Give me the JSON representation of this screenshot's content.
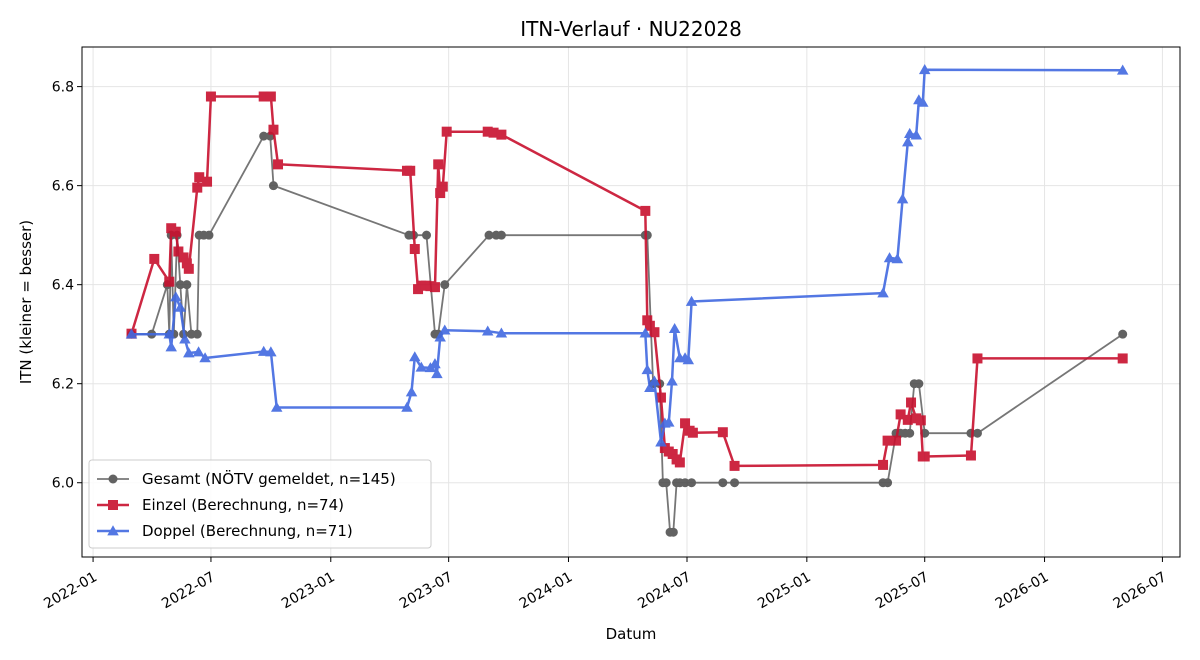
{
  "chart_data": {
    "type": "line",
    "title": "ITN-Verlauf · NU22028",
    "xlabel": "Datum",
    "ylabel": "ITN  (kleiner = besser)",
    "x_type": "date",
    "xlim": [
      "2021-12-15",
      "2026-07-28"
    ],
    "ylim": [
      5.85,
      6.88
    ],
    "x_ticks": [
      "2022-01",
      "2022-07",
      "2023-01",
      "2023-07",
      "2024-01",
      "2024-07",
      "2025-01",
      "2025-07",
      "2026-01",
      "2026-07"
    ],
    "y_ticks": [
      6.0,
      6.2,
      6.4,
      6.6,
      6.8
    ],
    "y_tick_labels": [
      "6.0",
      "6.2",
      "6.4",
      "6.6",
      "6.8"
    ],
    "grid": true,
    "legend_position": "lower-left",
    "series": [
      {
        "name": "Gesamt (NÖTV gemeldet, n=145)",
        "color": "#555555",
        "marker": "circle",
        "points": [
          [
            "2022-03-01",
            6.3
          ],
          [
            "2022-04-01",
            6.3
          ],
          [
            "2022-04-25",
            6.4
          ],
          [
            "2022-04-28",
            6.3
          ],
          [
            "2022-05-01",
            6.5
          ],
          [
            "2022-05-05",
            6.3
          ],
          [
            "2022-05-10",
            6.5
          ],
          [
            "2022-05-15",
            6.4
          ],
          [
            "2022-05-20",
            6.3
          ],
          [
            "2022-05-25",
            6.4
          ],
          [
            "2022-06-01",
            6.3
          ],
          [
            "2022-06-10",
            6.3
          ],
          [
            "2022-06-13",
            6.5
          ],
          [
            "2022-06-20",
            6.5
          ],
          [
            "2022-06-28",
            6.5
          ],
          [
            "2022-09-20",
            6.7
          ],
          [
            "2022-09-30",
            6.7
          ],
          [
            "2022-10-05",
            6.6
          ],
          [
            "2023-05-01",
            6.5
          ],
          [
            "2023-05-08",
            6.5
          ],
          [
            "2023-05-28",
            6.5
          ],
          [
            "2023-06-10",
            6.3
          ],
          [
            "2023-06-15",
            6.3
          ],
          [
            "2023-06-25",
            6.4
          ],
          [
            "2023-09-01",
            6.5
          ],
          [
            "2023-09-12",
            6.5
          ],
          [
            "2023-09-20",
            6.5
          ],
          [
            "2024-04-28",
            6.5
          ],
          [
            "2024-05-01",
            6.5
          ],
          [
            "2024-05-10",
            6.2
          ],
          [
            "2024-05-20",
            6.2
          ],
          [
            "2024-05-25",
            6.0
          ],
          [
            "2024-05-30",
            6.0
          ],
          [
            "2024-06-05",
            5.9
          ],
          [
            "2024-06-10",
            5.9
          ],
          [
            "2024-06-15",
            6.0
          ],
          [
            "2024-06-20",
            6.0
          ],
          [
            "2024-06-28",
            6.0
          ],
          [
            "2024-07-08",
            6.0
          ],
          [
            "2024-08-25",
            6.0
          ],
          [
            "2024-09-12",
            6.0
          ],
          [
            "2025-04-28",
            6.0
          ],
          [
            "2025-05-05",
            6.0
          ],
          [
            "2025-05-18",
            6.1
          ],
          [
            "2025-05-25",
            6.1
          ],
          [
            "2025-06-01",
            6.1
          ],
          [
            "2025-06-08",
            6.1
          ],
          [
            "2025-06-15",
            6.2
          ],
          [
            "2025-06-22",
            6.2
          ],
          [
            "2025-07-01",
            6.1
          ],
          [
            "2025-09-10",
            6.1
          ],
          [
            "2025-09-20",
            6.1
          ],
          [
            "2026-05-01",
            6.3
          ]
        ]
      },
      {
        "name": "Einzel (Berechnung, n=74)",
        "color": "#c8102e",
        "marker": "square",
        "points": [
          [
            "2022-03-01",
            6.301
          ],
          [
            "2022-04-05",
            6.452
          ],
          [
            "2022-04-28",
            6.406
          ],
          [
            "2022-05-01",
            6.514
          ],
          [
            "2022-05-08",
            6.507
          ],
          [
            "2022-05-12",
            6.467
          ],
          [
            "2022-05-20",
            6.455
          ],
          [
            "2022-05-25",
            6.443
          ],
          [
            "2022-05-28",
            6.432
          ],
          [
            "2022-06-10",
            6.596
          ],
          [
            "2022-06-13",
            6.617
          ],
          [
            "2022-06-25",
            6.608
          ],
          [
            "2022-07-01",
            6.78
          ],
          [
            "2022-09-20",
            6.78
          ],
          [
            "2022-10-01",
            6.78
          ],
          [
            "2022-10-05",
            6.713
          ],
          [
            "2022-10-12",
            6.643
          ],
          [
            "2023-04-28",
            6.63
          ],
          [
            "2023-05-03",
            6.63
          ],
          [
            "2023-05-10",
            6.472
          ],
          [
            "2023-05-15",
            6.391
          ],
          [
            "2023-05-20",
            6.398
          ],
          [
            "2023-05-27",
            6.398
          ],
          [
            "2023-06-03",
            6.397
          ],
          [
            "2023-06-10",
            6.395
          ],
          [
            "2023-06-15",
            6.643
          ],
          [
            "2023-06-18",
            6.585
          ],
          [
            "2023-06-22",
            6.598
          ],
          [
            "2023-06-28",
            6.709
          ],
          [
            "2023-08-30",
            6.709
          ],
          [
            "2023-09-08",
            6.707
          ],
          [
            "2023-09-20",
            6.703
          ],
          [
            "2024-04-28",
            6.549
          ],
          [
            "2024-05-01",
            6.328
          ],
          [
            "2024-05-05",
            6.317
          ],
          [
            "2024-05-12",
            6.304
          ],
          [
            "2024-05-22",
            6.172
          ],
          [
            "2024-05-28",
            6.07
          ],
          [
            "2024-06-03",
            6.063
          ],
          [
            "2024-06-09",
            6.058
          ],
          [
            "2024-06-15",
            6.047
          ],
          [
            "2024-06-20",
            6.041
          ],
          [
            "2024-06-28",
            6.12
          ],
          [
            "2024-07-05",
            6.105
          ],
          [
            "2024-07-10",
            6.101
          ],
          [
            "2024-08-25",
            6.102
          ],
          [
            "2024-09-12",
            6.034
          ],
          [
            "2025-04-28",
            6.036
          ],
          [
            "2025-05-05",
            6.085
          ],
          [
            "2025-05-18",
            6.085
          ],
          [
            "2025-05-25",
            6.138
          ],
          [
            "2025-06-05",
            6.127
          ],
          [
            "2025-06-10",
            6.162
          ],
          [
            "2025-06-18",
            6.13
          ],
          [
            "2025-06-25",
            6.126
          ],
          [
            "2025-06-28",
            6.053
          ],
          [
            "2025-07-01",
            6.053
          ],
          [
            "2025-09-10",
            6.055
          ],
          [
            "2025-09-20",
            6.251
          ],
          [
            "2026-05-01",
            6.251
          ]
        ]
      },
      {
        "name": "Doppel (Berechnung, n=71)",
        "color": "#4169e1",
        "marker": "triangle",
        "points": [
          [
            "2022-03-01",
            6.3
          ],
          [
            "2022-04-28",
            6.3
          ],
          [
            "2022-05-01",
            6.274
          ],
          [
            "2022-05-08",
            6.375
          ],
          [
            "2022-05-15",
            6.354
          ],
          [
            "2022-05-22",
            6.29
          ],
          [
            "2022-05-28",
            6.262
          ],
          [
            "2022-06-12",
            6.264
          ],
          [
            "2022-06-22",
            6.252
          ],
          [
            "2022-09-20",
            6.265
          ],
          [
            "2022-10-01",
            6.264
          ],
          [
            "2022-10-10",
            6.152
          ],
          [
            "2023-04-28",
            6.152
          ],
          [
            "2023-05-05",
            6.183
          ],
          [
            "2023-05-10",
            6.254
          ],
          [
            "2023-05-20",
            6.233
          ],
          [
            "2023-06-03",
            6.232
          ],
          [
            "2023-06-10",
            6.24
          ],
          [
            "2023-06-13",
            6.22
          ],
          [
            "2023-06-18",
            6.294
          ],
          [
            "2023-06-25",
            6.308
          ],
          [
            "2023-08-30",
            6.306
          ],
          [
            "2023-09-20",
            6.302
          ],
          [
            "2024-04-28",
            6.302
          ],
          [
            "2024-05-01",
            6.228
          ],
          [
            "2024-05-05",
            6.192
          ],
          [
            "2024-05-12",
            6.205
          ],
          [
            "2024-05-22",
            6.082
          ],
          [
            "2024-05-28",
            6.12
          ],
          [
            "2024-06-03",
            6.122
          ],
          [
            "2024-06-08",
            6.205
          ],
          [
            "2024-06-12",
            6.311
          ],
          [
            "2024-06-20",
            6.252
          ],
          [
            "2024-06-28",
            6.252
          ],
          [
            "2024-07-03",
            6.248
          ],
          [
            "2024-07-08",
            6.366
          ],
          [
            "2025-04-28",
            6.383
          ],
          [
            "2025-05-08",
            6.454
          ],
          [
            "2025-05-20",
            6.452
          ],
          [
            "2025-05-28",
            6.573
          ],
          [
            "2025-06-05",
            6.688
          ],
          [
            "2025-06-08",
            6.705
          ],
          [
            "2025-06-18",
            6.702
          ],
          [
            "2025-06-22",
            6.773
          ],
          [
            "2025-06-28",
            6.768
          ],
          [
            "2025-07-01",
            6.834
          ],
          [
            "2026-05-01",
            6.833
          ]
        ]
      }
    ]
  }
}
